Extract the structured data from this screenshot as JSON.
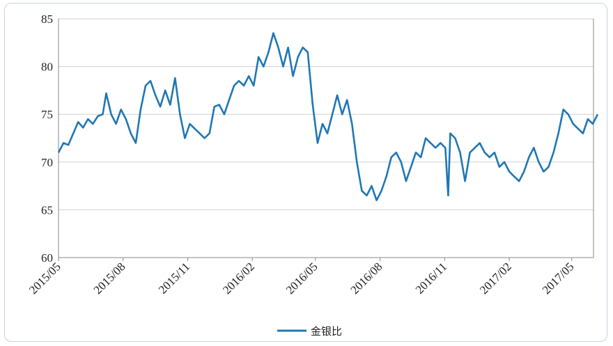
{
  "chart_data": {
    "type": "line",
    "title": "",
    "xlabel": "",
    "ylabel": "",
    "ylim": [
      60,
      85
    ],
    "yticks": [
      60,
      65,
      70,
      75,
      80,
      85
    ],
    "xticks": [
      "2015/05",
      "2015/08",
      "2015/11",
      "2016/02",
      "2016/05",
      "2016/08",
      "2016/11",
      "2017/02",
      "2017/05"
    ],
    "xrange": [
      "2015/05",
      "2017/06"
    ],
    "grid": "horizontal",
    "legend_position": "bottom-center",
    "series": [
      {
        "name": "金银比",
        "color": "#1f77b4",
        "points": [
          [
            "2015-05-01",
            71.0
          ],
          [
            "2015-05-08",
            72.0
          ],
          [
            "2015-05-15",
            71.8
          ],
          [
            "2015-05-22",
            73.0
          ],
          [
            "2015-05-29",
            74.2
          ],
          [
            "2015-06-05",
            73.6
          ],
          [
            "2015-06-12",
            74.5
          ],
          [
            "2015-06-19",
            74.0
          ],
          [
            "2015-06-26",
            74.8
          ],
          [
            "2015-07-03",
            75.0
          ],
          [
            "2015-07-08",
            77.2
          ],
          [
            "2015-07-15",
            75.0
          ],
          [
            "2015-07-22",
            74.0
          ],
          [
            "2015-07-29",
            75.5
          ],
          [
            "2015-08-05",
            74.5
          ],
          [
            "2015-08-12",
            73.0
          ],
          [
            "2015-08-19",
            72.0
          ],
          [
            "2015-08-26",
            75.5
          ],
          [
            "2015-09-02",
            78.0
          ],
          [
            "2015-09-09",
            78.5
          ],
          [
            "2015-09-16",
            77.0
          ],
          [
            "2015-09-23",
            75.8
          ],
          [
            "2015-09-30",
            77.5
          ],
          [
            "2015-10-07",
            76.0
          ],
          [
            "2015-10-14",
            78.8
          ],
          [
            "2015-10-21",
            75.0
          ],
          [
            "2015-10-28",
            72.5
          ],
          [
            "2015-11-04",
            74.0
          ],
          [
            "2015-11-11",
            73.5
          ],
          [
            "2015-11-18",
            73.0
          ],
          [
            "2015-11-25",
            72.5
          ],
          [
            "2015-12-02",
            73.0
          ],
          [
            "2015-12-09",
            75.8
          ],
          [
            "2015-12-16",
            76.0
          ],
          [
            "2015-12-23",
            75.0
          ],
          [
            "2015-12-30",
            76.5
          ],
          [
            "2016-01-06",
            78.0
          ],
          [
            "2016-01-13",
            78.5
          ],
          [
            "2016-01-20",
            78.0
          ],
          [
            "2016-01-27",
            79.0
          ],
          [
            "2016-02-03",
            78.0
          ],
          [
            "2016-02-10",
            81.0
          ],
          [
            "2016-02-17",
            80.0
          ],
          [
            "2016-02-24",
            81.5
          ],
          [
            "2016-03-02",
            83.5
          ],
          [
            "2016-03-09",
            82.0
          ],
          [
            "2016-03-16",
            80.0
          ],
          [
            "2016-03-23",
            82.0
          ],
          [
            "2016-03-30",
            79.0
          ],
          [
            "2016-04-06",
            81.0
          ],
          [
            "2016-04-13",
            82.0
          ],
          [
            "2016-04-20",
            81.5
          ],
          [
            "2016-04-27",
            76.0
          ],
          [
            "2016-05-04",
            72.0
          ],
          [
            "2016-05-11",
            74.0
          ],
          [
            "2016-05-18",
            73.0
          ],
          [
            "2016-05-25",
            75.0
          ],
          [
            "2016-06-01",
            77.0
          ],
          [
            "2016-06-08",
            75.0
          ],
          [
            "2016-06-15",
            76.5
          ],
          [
            "2016-06-22",
            74.0
          ],
          [
            "2016-06-29",
            70.0
          ],
          [
            "2016-07-06",
            67.0
          ],
          [
            "2016-07-13",
            66.5
          ],
          [
            "2016-07-20",
            67.5
          ],
          [
            "2016-07-27",
            66.0
          ],
          [
            "2016-08-03",
            67.0
          ],
          [
            "2016-08-10",
            68.5
          ],
          [
            "2016-08-17",
            70.5
          ],
          [
            "2016-08-24",
            71.0
          ],
          [
            "2016-08-31",
            70.0
          ],
          [
            "2016-09-07",
            68.0
          ],
          [
            "2016-09-14",
            69.5
          ],
          [
            "2016-09-21",
            71.0
          ],
          [
            "2016-09-28",
            70.5
          ],
          [
            "2016-10-05",
            72.5
          ],
          [
            "2016-10-12",
            72.0
          ],
          [
            "2016-10-19",
            71.5
          ],
          [
            "2016-10-26",
            72.0
          ],
          [
            "2016-11-02",
            71.5
          ],
          [
            "2016-11-06",
            66.5
          ],
          [
            "2016-11-09",
            73.0
          ],
          [
            "2016-11-16",
            72.5
          ],
          [
            "2016-11-23",
            71.0
          ],
          [
            "2016-11-30",
            68.0
          ],
          [
            "2016-12-07",
            71.0
          ],
          [
            "2016-12-14",
            71.5
          ],
          [
            "2016-12-21",
            72.0
          ],
          [
            "2016-12-28",
            71.0
          ],
          [
            "2017-01-04",
            70.5
          ],
          [
            "2017-01-11",
            71.0
          ],
          [
            "2017-01-18",
            69.5
          ],
          [
            "2017-01-25",
            70.0
          ],
          [
            "2017-02-01",
            69.0
          ],
          [
            "2017-02-08",
            68.5
          ],
          [
            "2017-02-15",
            68.0
          ],
          [
            "2017-02-22",
            69.0
          ],
          [
            "2017-03-01",
            70.5
          ],
          [
            "2017-03-08",
            71.5
          ],
          [
            "2017-03-15",
            70.0
          ],
          [
            "2017-03-22",
            69.0
          ],
          [
            "2017-03-29",
            69.5
          ],
          [
            "2017-04-05",
            71.0
          ],
          [
            "2017-04-12",
            73.0
          ],
          [
            "2017-04-19",
            75.5
          ],
          [
            "2017-04-26",
            75.0
          ],
          [
            "2017-05-03",
            74.0
          ],
          [
            "2017-05-10",
            73.5
          ],
          [
            "2017-05-17",
            73.0
          ],
          [
            "2017-05-24",
            74.5
          ],
          [
            "2017-05-31",
            74.0
          ],
          [
            "2017-06-07",
            75.0
          ]
        ]
      }
    ]
  }
}
